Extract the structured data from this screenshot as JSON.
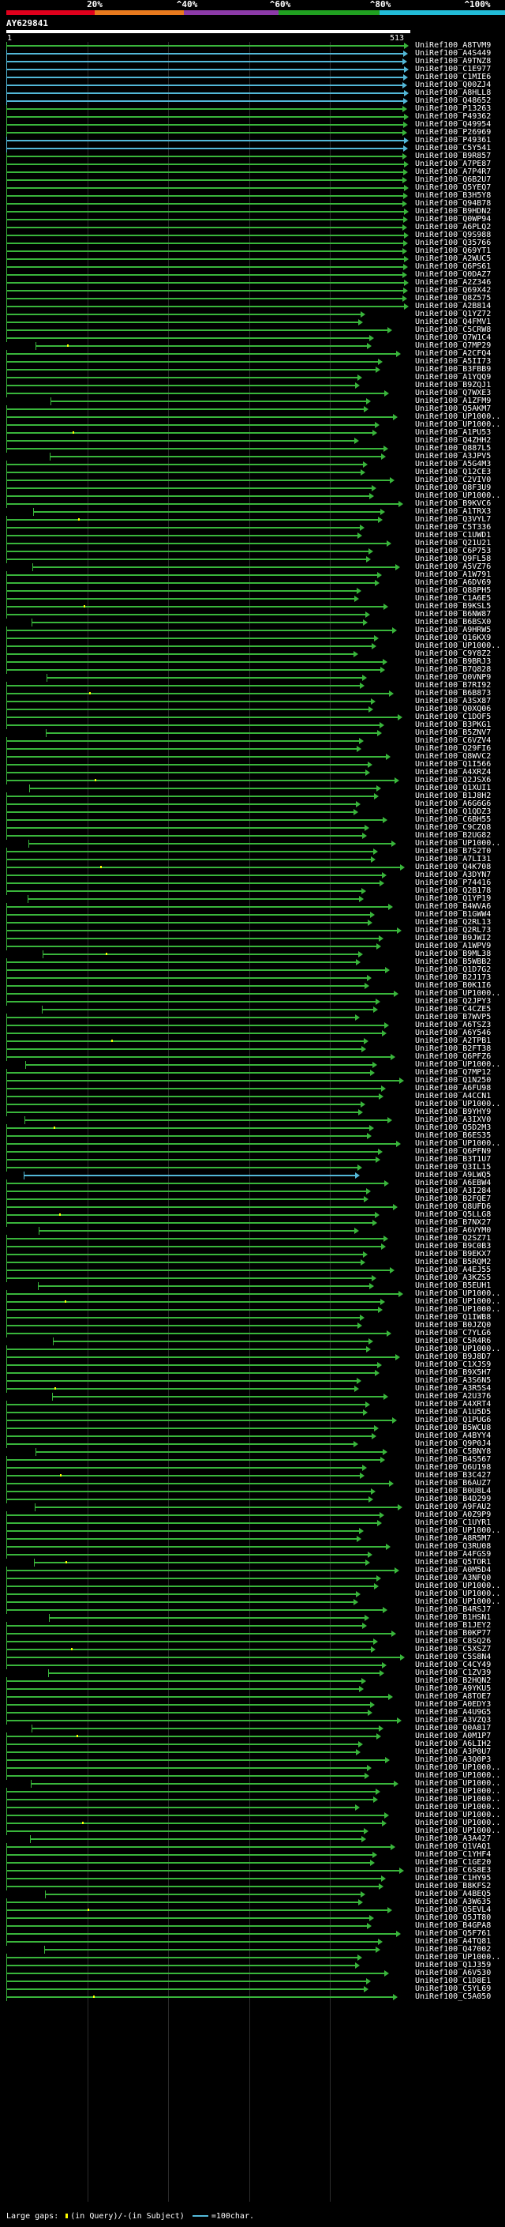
{
  "scale": {
    "ticks": [
      "20%",
      "^40%",
      "^60%",
      "^80%",
      "^100%"
    ],
    "colors": [
      "#e0001c",
      "#e87a1e",
      "#8c3aa8",
      "#20a020",
      "#22bcd8"
    ]
  },
  "query": {
    "id": "AY629841",
    "start": "1",
    "end": "513"
  },
  "colors": {
    "identity100": "#53b8d8",
    "identity80": "#39b53b",
    "gap": "#ffff00",
    "background": "#000000"
  },
  "hits": [
    "UniRef100_A8TVM9",
    "UniRef100_A4S449",
    "UniRef100_A9TNZ8",
    "UniRef100_C1E977",
    "UniRef100_C1MIE6",
    "UniRef100_Q00ZJ4",
    "UniRef100_A8HLL8",
    "UniRef100_Q48652",
    "UniRef100_P13263",
    "UniRef100_P49362",
    "UniRef100_Q49954",
    "UniRef100_P26969",
    "UniRef100_P49361",
    "UniRef100_C5Y541",
    "UniRef100_B9R857",
    "UniRef100_A7PE87",
    "UniRef100_A7P4R7",
    "UniRef100_Q6B2U7",
    "UniRef100_Q5YEQ7",
    "UniRef100_B3H5Y8",
    "UniRef100_Q94B78",
    "UniRef100_B9HDN2",
    "UniRef100_Q0WP94",
    "UniRef100_A6PLQ2",
    "UniRef100_Q9S988",
    "UniRef100_Q35766",
    "UniRef100_Q69YT1",
    "UniRef100_A2WUC5",
    "UniRef100_Q6PS61",
    "UniRef100_Q0DAZ7",
    "UniRef100_A2Z346",
    "UniRef100_Q69X42",
    "UniRef100_Q8Z575",
    "UniRef100_A2B814",
    "UniRef100_Q1YZ72",
    "UniRef100_Q4FMV1",
    "UniRef100_C5CRW8",
    "UniRef100_Q7W1C4",
    "UniRef100_Q7MP29",
    "UniRef100_A2CFQ4",
    "UniRef100_A5II73",
    "UniRef100_B3FBB9",
    "UniRef100_A1YQQ9",
    "UniRef100_B9ZQJ1",
    "UniRef100_Q7WXE3",
    "UniRef100_A1ZFM9",
    "UniRef100_Q5AKM7",
    "UniRef100_UP1000..",
    "UniRef100_UP1000..",
    "UniRef100_A1PU53",
    "UniRef100_Q4ZHH2",
    "UniRef100_Q887L5",
    "UniRef100_A3JPV5",
    "UniRef100_A5G4M3",
    "UniRef100_Q12CE3",
    "UniRef100_C2VIV0",
    "UniRef100_Q8F3U9",
    "UniRef100_UP1000..",
    "UniRef100_B9KVC6",
    "UniRef100_A1TRX3",
    "UniRef100_Q3VYL7",
    "UniRef100_C5T336",
    "UniRef100_C1UWD1",
    "UniRef100_Q21U21",
    "UniRef100_C6P753",
    "UniRef100_Q9FL58",
    "UniRef100_A5VZ76",
    "UniRef100_A1W791",
    "UniRef100_A6DV69",
    "UniRef100_Q88PH5",
    "UniRef100_C1A6E5",
    "UniRef100_B9KSL5",
    "UniRef100_B6NW87",
    "UniRef100_B6BSX0",
    "UniRef100_A9HRW5",
    "UniRef100_Q16KX9",
    "UniRef100_UP1000..",
    "UniRef100_C9Y8Z2",
    "UniRef100_B9BRJ3",
    "UniRef100_B7Q828",
    "UniRef100_Q0VNP9",
    "UniRef100_B7RI92",
    "UniRef100_B6B873",
    "UniRef100_A3SX87",
    "UniRef100_Q0XQ06",
    "UniRef100_C1DOF5",
    "UniRef100_B3PKG1",
    "UniRef100_B5ZNV7",
    "UniRef100_C6VZV4",
    "UniRef100_Q29FI6",
    "UniRef100_Q8WVC2",
    "UniRef100_Q1I566",
    "UniRef100_A4XRZ4",
    "UniRef100_Q2JSX6",
    "UniRef100_Q1XUI1",
    "UniRef100_B1J8H2",
    "UniRef100_A6G6G6",
    "UniRef100_Q1QDZ3",
    "UniRef100_C6BH55",
    "UniRef100_C9CZQ8",
    "UniRef100_B2UG82",
    "UniRef100_UP1000..",
    "UniRef100_B7S2T0",
    "UniRef100_A7LI31",
    "UniRef100_Q4K708",
    "UniRef100_A3DYN7",
    "UniRef100_P74416",
    "UniRef100_Q2B178",
    "UniRef100_Q1YP19",
    "UniRef100_B4WVA6",
    "UniRef100_B1GWW4",
    "UniRef100_Q2RL13",
    "UniRef100_Q2RL73",
    "UniRef100_B9JWI2",
    "UniRef100_A1WPV9",
    "UniRef100_B9ML38",
    "UniRef100_B5WBB2",
    "UniRef100_Q1D7G2",
    "UniRef100_B2J173",
    "UniRef100_B0K1I6",
    "UniRef100_UP1000..",
    "UniRef100_Q2JPY3",
    "UniRef100_C4CZE5",
    "UniRef100_B7WVP5",
    "UniRef100_A6TSZ3",
    "UniRef100_A6Y546",
    "UniRef100_A2TPB1",
    "UniRef100_B2FT38",
    "UniRef100_Q6PFZ6",
    "UniRef100_UP1000..",
    "UniRef100_Q7MP12",
    "UniRef100_Q1N250",
    "UniRef100_A6FU98",
    "UniRef100_A4CCN1",
    "UniRef100_UP1000..",
    "UniRef100_B9YHY9",
    "UniRef100_A3IXV0",
    "UniRef100_Q5D2M3",
    "UniRef100_B6ES35",
    "UniRef100_UP1000..",
    "UniRef100_Q6PFN9",
    "UniRef100_B3T1U7",
    "UniRef100_Q3IL15",
    "UniRef100_A9LWQ5",
    "UniRef100_A6EBW4",
    "UniRef100_A3I284",
    "UniRef100_B2FQE7",
    "UniRef100_Q8UFD6",
    "UniRef100_Q5LLG8",
    "UniRef100_B7NX27",
    "UniRef100_A6VYM0",
    "UniRef100_Q2SZ71",
    "UniRef100_B9C0B3",
    "UniRef100_B9EKX7",
    "UniRef100_B5RQM2",
    "UniRef100_A4EJ55",
    "UniRef100_A3KZS5",
    "UniRef100_B5EUH1",
    "UniRef100_UP1000..",
    "UniRef100_UP1000..",
    "UniRef100_UP1000..",
    "UniRef100_Q1IWB8",
    "UniRef100_B0JZQ0",
    "UniRef100_C7YLG6",
    "UniRef100_C5R4R6",
    "UniRef100_UP1000..",
    "UniRef100_B9J8D7",
    "UniRef100_C1XJS9",
    "UniRef100_B9X5H7",
    "UniRef100_A3S6N5",
    "UniRef100_A3R5S4",
    "UniRef100_A2U376",
    "UniRef100_A4XRT4",
    "UniRef100_A1U5D5",
    "UniRef100_Q1PUG6",
    "UniRef100_B5WCU8",
    "UniRef100_A4BYY4",
    "UniRef100_Q9P0J4",
    "UniRef100_C5BNY8",
    "UniRef100_B4S567",
    "UniRef100_Q6U198",
    "UniRef100_B3C427",
    "UniRef100_B6AUZ7",
    "UniRef100_B0U8L4",
    "UniRef100_B4D299",
    "UniRef100_A9FAU2",
    "UniRef100_A0Z9P9",
    "UniRef100_C1UYR1",
    "UniRef100_UP1000..",
    "UniRef100_A8R5M7",
    "UniRef100_Q3RU08",
    "UniRef100_A4FGS9",
    "UniRef100_Q5TOR1",
    "UniRef100_A0M5D4",
    "UniRef100_A3NFQ0",
    "UniRef100_UP1000..",
    "UniRef100_UP1000..",
    "UniRef100_UP1000..",
    "UniRef100_B4RSJ7",
    "UniRef100_B1HSN1",
    "UniRef100_B1JEY2",
    "UniRef100_B0KP77",
    "UniRef100_C8SQ26",
    "UniRef100_C5XSZ7",
    "UniRef100_C5S8N4",
    "UniRef100_C4CY49",
    "UniRef100_C1ZV39",
    "UniRef100_B2HQN2",
    "UniRef100_A9YKU5",
    "UniRef100_A8TOE7",
    "UniRef100_A0EDY3",
    "UniRef100_A4U9G5",
    "UniRef100_A3VZQ3",
    "UniRef100_Q0A817",
    "UniRef100_A0M1P7",
    "UniRef100_A6LIH2",
    "UniRef100_A3P0U7",
    "UniRef100_A3Q0P3",
    "UniRef100_UP1000..",
    "UniRef100_UP1000..",
    "UniRef100_UP1000..",
    "UniRef100_UP1000..",
    "UniRef100_UP1000..",
    "UniRef100_UP1000..",
    "UniRef100_UP1000..",
    "UniRef100_UP1000..",
    "UniRef100_UP1000..",
    "UniRef100_A3A427",
    "UniRef100_Q1VAQ1",
    "UniRef100_C1YHF4",
    "UniRef100_C1GE20",
    "UniRef100_C6S8E3",
    "UniRef100_C1HY95",
    "UniRef100_B8KFS2",
    "UniRef100_A4BEQ5",
    "UniRef100_A3W635",
    "UniRef100_Q5EVL4",
    "UniRef100_Q5JT80",
    "UniRef100_B4GPA8",
    "UniRef100_Q5F761",
    "UniRef100_A4TQ81",
    "UniRef100_Q47002",
    "UniRef100_UP1000..",
    "UniRef100_Q1J359",
    "UniRef100_A6V530",
    "UniRef100_C1D8E1",
    "UniRef100_C5YL69",
    "UniRef100_C5A050"
  ],
  "legend": {
    "prefix": "Large gaps:",
    "query_gap": "(in Query)",
    "separator": "/-",
    "subject_gap": "(in Subject)",
    "scale": "=100char."
  }
}
